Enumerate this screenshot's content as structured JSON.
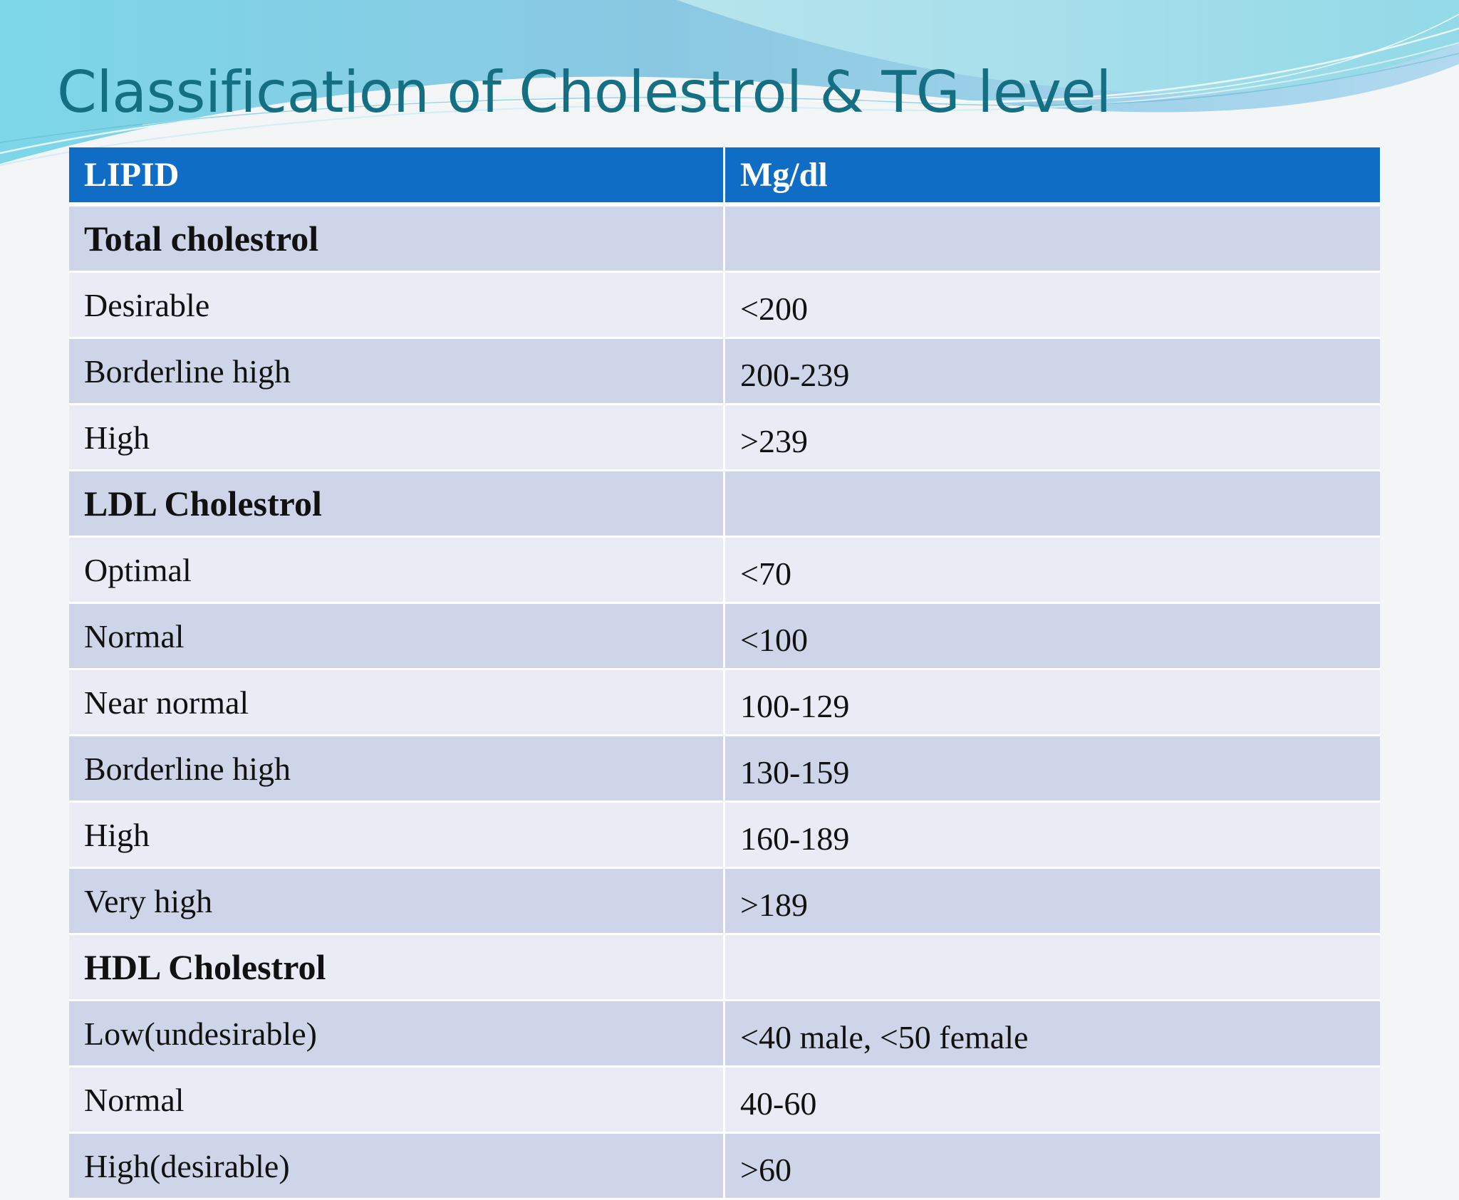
{
  "slide": {
    "title": "Classification of Cholestrol & TG level"
  },
  "table": {
    "columns": [
      "LIPID",
      "Mg/dl"
    ],
    "rows": [
      {
        "label": "Total cholestrol",
        "value": "",
        "section": true
      },
      {
        "label": "Desirable",
        "value": "<200",
        "section": false
      },
      {
        "label": "Borderline high",
        "value": "200-239",
        "section": false
      },
      {
        "label": "High",
        "value": ">239",
        "section": false
      },
      {
        "label": "LDL Cholestrol",
        "value": "",
        "section": true
      },
      {
        "label": "Optimal",
        "value": "<70",
        "section": false
      },
      {
        "label": "Normal",
        "value": "<100",
        "section": false
      },
      {
        "label": "Near normal",
        "value": "100-129",
        "section": false
      },
      {
        "label": "Borderline high",
        "value": "130-159",
        "section": false
      },
      {
        "label": "High",
        "value": "160-189",
        "section": false
      },
      {
        "label": "Very high",
        "value": ">189",
        "section": false
      },
      {
        "label": "HDL Cholestrol",
        "value": "",
        "section": true
      },
      {
        "label": "Low(undesirable)",
        "value": "<40 male,  <50 female",
        "section": false
      },
      {
        "label": "Normal",
        "value": "40-60",
        "section": false
      },
      {
        "label": "High(desirable)",
        "value": ">60",
        "section": false
      }
    ]
  },
  "colors": {
    "header_bg": "#0f6dc6",
    "row_dark": "#cfd5e9",
    "row_light": "#e9ebf5",
    "title": "#156f82"
  }
}
